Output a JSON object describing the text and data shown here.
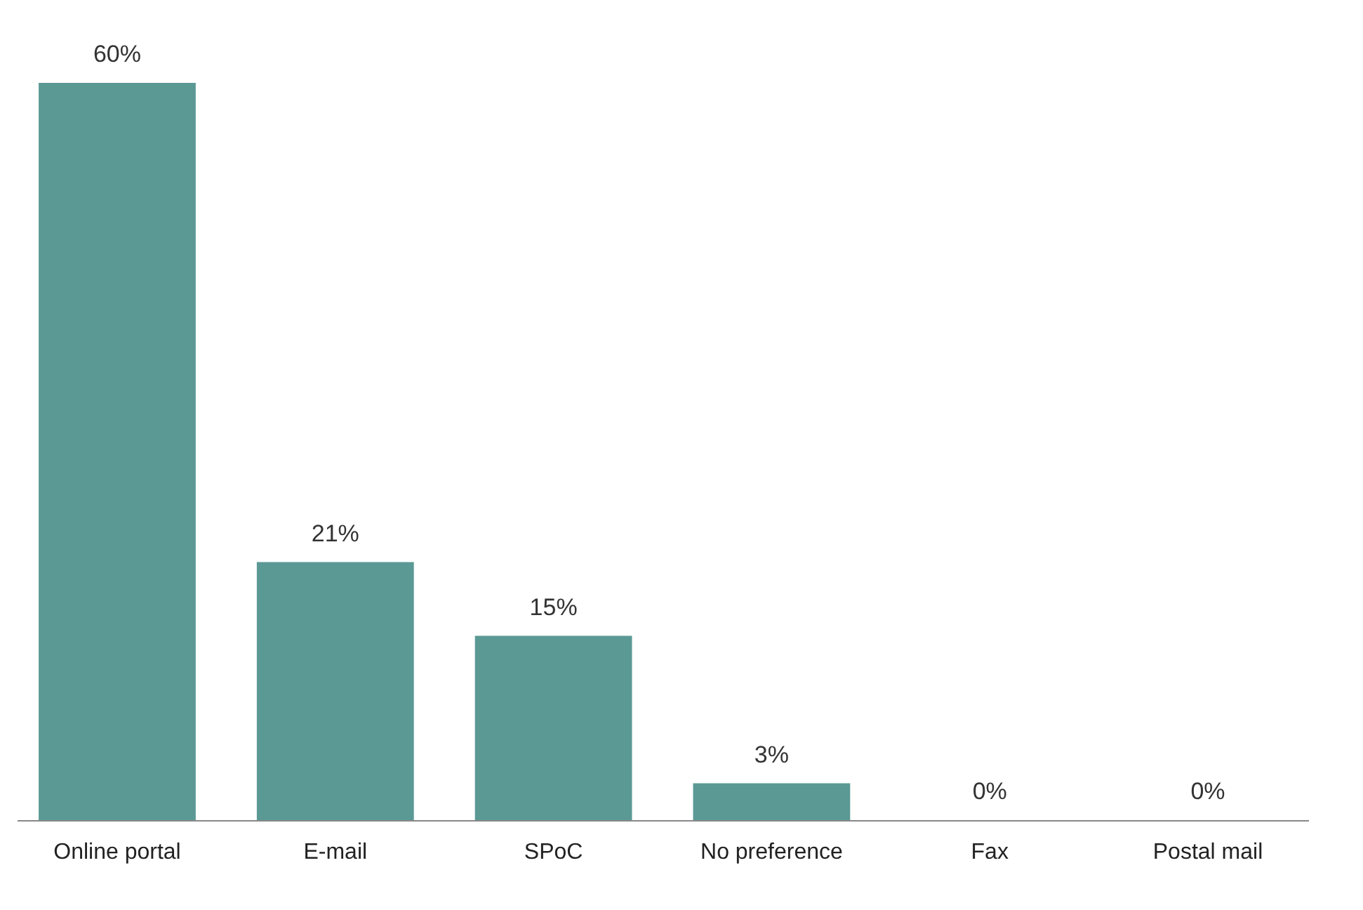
{
  "chart_data": {
    "type": "bar",
    "categories": [
      "Online portal",
      "E-mail",
      "SPoC",
      "No preference",
      "Fax",
      "Postal mail"
    ],
    "values": [
      60,
      21,
      15,
      3,
      0,
      0
    ],
    "value_labels": [
      "60%",
      "21%",
      "15%",
      "3%",
      "0%",
      "0%"
    ],
    "color": "#5b9995",
    "grid": false
  }
}
